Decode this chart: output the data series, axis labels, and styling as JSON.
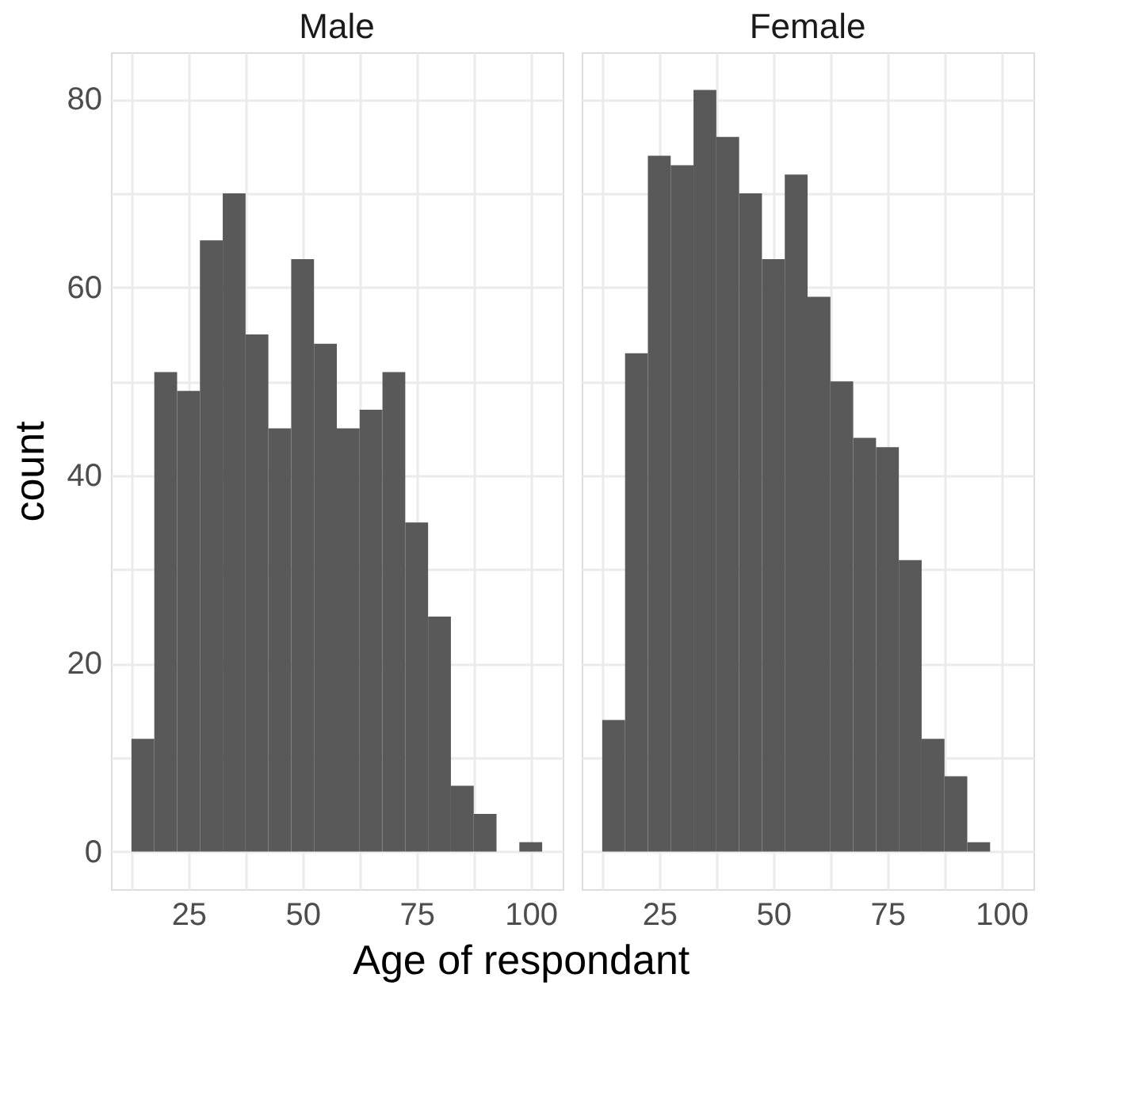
{
  "chart_data": [
    {
      "type": "histogram",
      "title": "Male",
      "ylabel": "count",
      "xlabel": "Age of respondant",
      "color": "#595959",
      "bins": [
        12.5,
        17.5,
        22.5,
        27.5,
        32.5,
        37.5,
        42.5,
        47.5,
        52.5,
        57.5,
        62.5,
        67.5,
        72.5,
        77.5,
        82.5,
        87.5,
        92.5,
        97.5,
        102.5
      ],
      "values": [
        12,
        51,
        49,
        65,
        70,
        55,
        45,
        63,
        54,
        45,
        47,
        51,
        35,
        25,
        7,
        4,
        0,
        1
      ],
      "xlim": [
        8,
        107
      ],
      "xticks": [
        {
          "value": 12.5,
          "label": null
        },
        25,
        {
          "value": 37.5,
          "label": null
        },
        50,
        {
          "value": 62.5,
          "label": null
        },
        75,
        {
          "value": 87.5,
          "label": null
        },
        100
      ],
      "ylim": [
        -4,
        85
      ],
      "yticks": [
        0,
        {
          "value": 10,
          "label": null
        },
        20,
        {
          "value": 30,
          "label": null
        },
        40,
        {
          "value": 50,
          "label": null
        },
        60,
        {
          "value": 70,
          "label": null
        },
        80
      ],
      "grid": true
    },
    {
      "type": "histogram",
      "title": "Female",
      "color": "#595959",
      "bins": [
        12.5,
        17.5,
        22.5,
        27.5,
        32.5,
        37.5,
        42.5,
        47.5,
        52.5,
        57.5,
        62.5,
        67.5,
        72.5,
        77.5,
        82.5,
        87.5,
        92.5,
        97.5
      ],
      "values": [
        14,
        53,
        74,
        73,
        81,
        76,
        70,
        63,
        72,
        59,
        50,
        44,
        43,
        31,
        12,
        8,
        1
      ],
      "xlim": [
        8,
        107
      ],
      "xticks": [
        {
          "value": 12.5,
          "label": null
        },
        25,
        {
          "value": 37.5,
          "label": null
        },
        50,
        {
          "value": 62.5,
          "label": null
        },
        75,
        {
          "value": 87.5,
          "label": null
        },
        100
      ],
      "ylim": [
        -4,
        85
      ],
      "yticks": [
        0,
        {
          "value": 10,
          "label": null
        },
        20,
        {
          "value": 30,
          "label": null
        },
        40,
        {
          "value": 50,
          "label": null
        },
        60,
        {
          "value": 70,
          "label": null
        },
        80
      ],
      "grid": true,
      "tick_labels": "x"
    }
  ]
}
